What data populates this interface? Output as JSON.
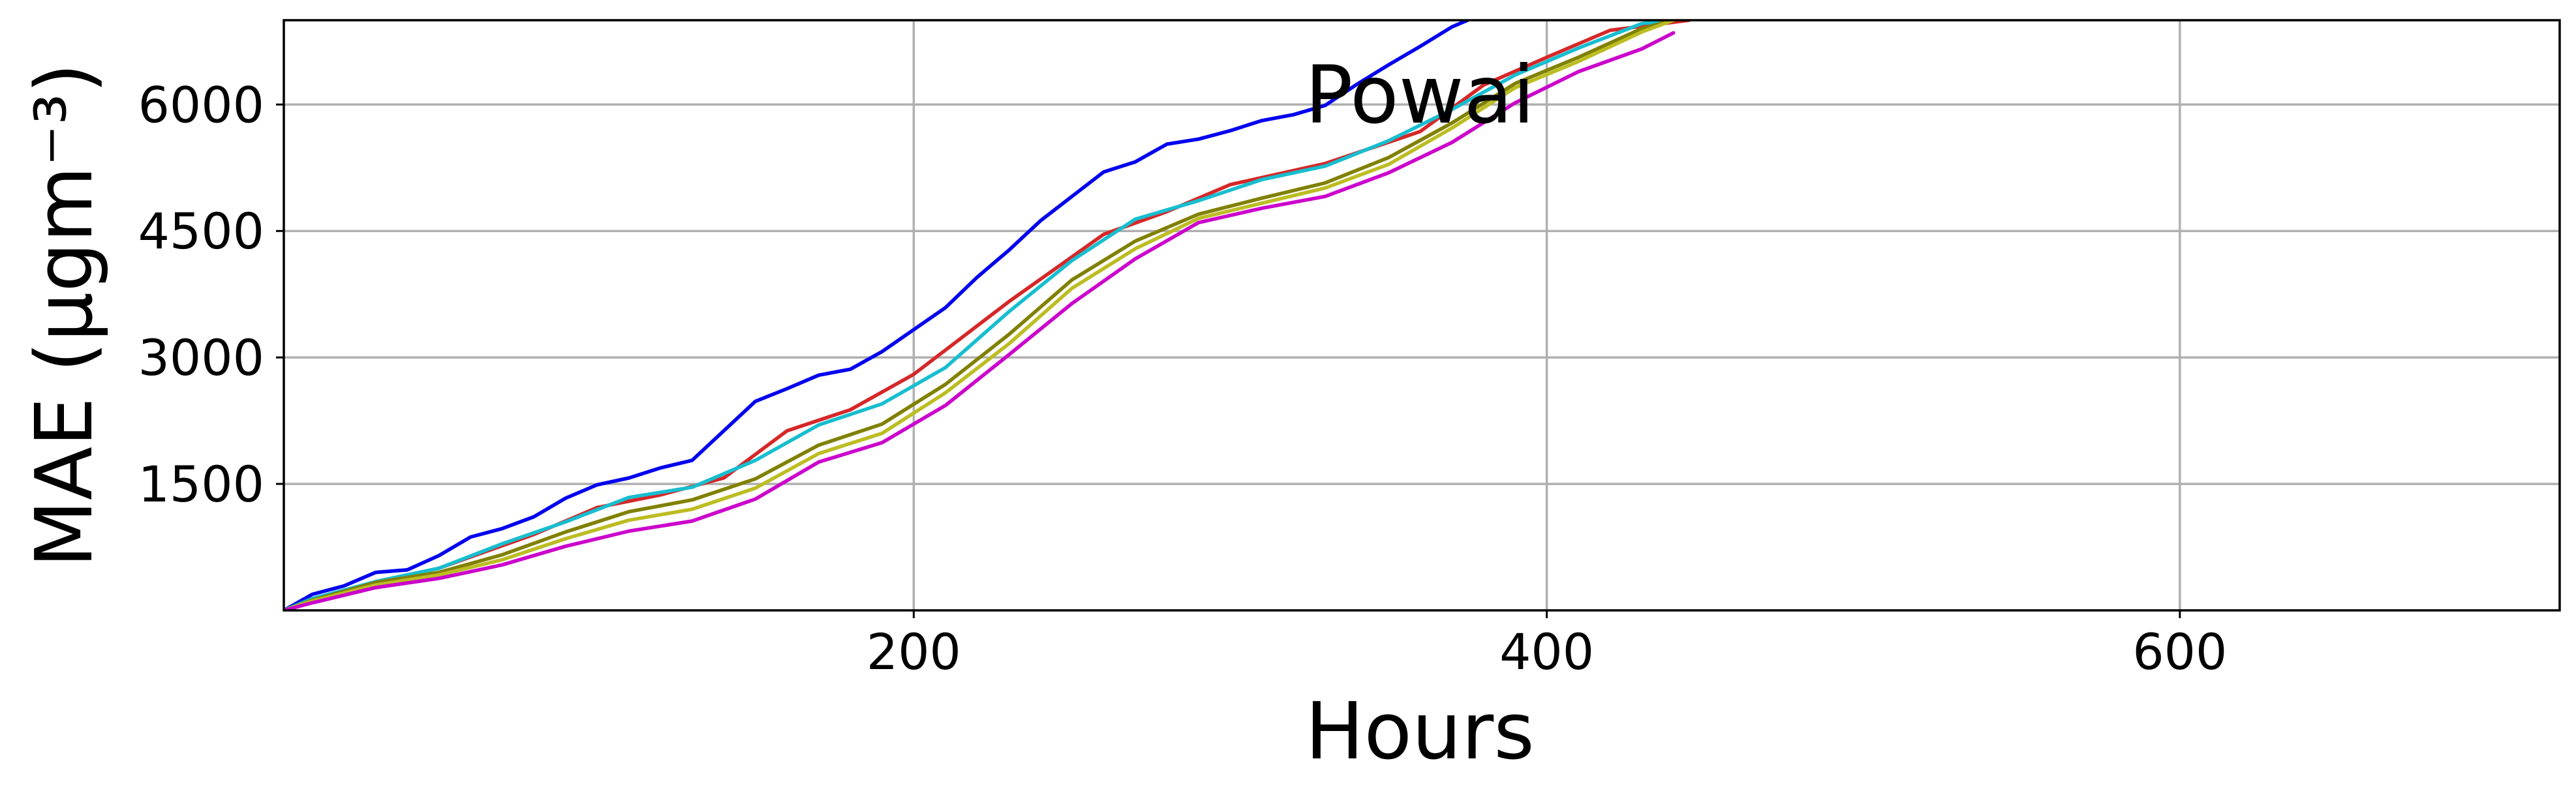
{
  "chart_data": {
    "type": "line",
    "title": "Powai",
    "xlabel": "Hours",
    "ylabel": "MAE (μgm⁻³)",
    "xlim": [
      1,
      720
    ],
    "ylim": [
      0,
      7000
    ],
    "xticks": [
      200,
      400,
      600
    ],
    "yticks": [
      1500,
      3000,
      4500,
      6000
    ],
    "xtick_labels": [
      "200",
      "400",
      "600"
    ],
    "ytick_labels": [
      "1500",
      "3000",
      "4500",
      "6000"
    ],
    "grid": true,
    "legend": "none",
    "series": [
      {
        "color": "#d62728",
        "x": [
          1,
          10,
          30,
          50,
          80,
          100,
          120,
          140,
          160,
          180,
          200,
          230,
          260,
          280,
          300,
          330,
          360,
          380,
          400,
          420,
          445
        ],
        "y": [
          0,
          130,
          340,
          500,
          900,
          1220,
          1370,
          1570,
          2130,
          2380,
          2800,
          3660,
          4460,
          4730,
          5050,
          5300,
          5680,
          6230,
          6560,
          6880,
          7000
        ]
      },
      {
        "color": "#0000ee",
        "x": [
          1,
          10,
          20,
          30,
          40,
          50,
          60,
          70,
          80,
          90,
          100,
          110,
          120,
          130,
          140,
          150,
          160,
          170,
          180,
          190,
          200,
          210,
          220,
          230,
          240,
          250,
          260,
          270,
          280,
          290,
          300,
          310,
          320,
          330,
          340,
          350,
          360,
          370,
          375
        ],
        "y": [
          0,
          190,
          290,
          450,
          480,
          650,
          870,
          970,
          1110,
          1330,
          1490,
          1570,
          1690,
          1780,
          2130,
          2480,
          2630,
          2790,
          2860,
          3070,
          3330,
          3590,
          3950,
          4270,
          4620,
          4910,
          5200,
          5320,
          5530,
          5590,
          5690,
          5810,
          5880,
          5990,
          6240,
          6470,
          6690,
          6920,
          7000
        ]
      },
      {
        "color": "#17becf",
        "x": [
          1,
          10,
          30,
          50,
          70,
          90,
          110,
          130,
          150,
          170,
          190,
          210,
          230,
          250,
          270,
          290,
          310,
          330,
          350,
          370,
          390,
          410,
          430,
          440
        ],
        "y": [
          0,
          140,
          340,
          500,
          790,
          1050,
          1340,
          1460,
          1780,
          2200,
          2450,
          2880,
          3540,
          4150,
          4640,
          4860,
          5110,
          5270,
          5570,
          5940,
          6350,
          6670,
          6960,
          7000
        ]
      },
      {
        "color": "#808000",
        "x": [
          1,
          10,
          30,
          50,
          70,
          90,
          110,
          130,
          150,
          170,
          190,
          210,
          230,
          250,
          270,
          290,
          310,
          330,
          350,
          370,
          390,
          410,
          430,
          440
        ],
        "y": [
          0,
          120,
          330,
          450,
          660,
          930,
          1170,
          1310,
          1560,
          1960,
          2210,
          2680,
          3270,
          3920,
          4380,
          4700,
          4890,
          5070,
          5370,
          5780,
          6250,
          6560,
          6900,
          7000
        ]
      },
      {
        "color": "#bcbd22",
        "x": [
          1,
          10,
          30,
          50,
          70,
          90,
          110,
          130,
          150,
          170,
          190,
          210,
          230,
          250,
          270,
          290,
          310,
          330,
          350,
          370,
          390,
          410,
          430,
          440
        ],
        "y": [
          0,
          110,
          300,
          420,
          600,
          850,
          1070,
          1200,
          1450,
          1860,
          2100,
          2580,
          3160,
          3820,
          4290,
          4650,
          4830,
          5010,
          5290,
          5720,
          6200,
          6510,
          6860,
          7000
        ]
      },
      {
        "color": "#cc00cc",
        "x": [
          1,
          10,
          30,
          50,
          70,
          90,
          110,
          130,
          150,
          170,
          190,
          210,
          230,
          250,
          270,
          290,
          310,
          330,
          350,
          370,
          390,
          410,
          430,
          440
        ],
        "y": [
          0,
          90,
          270,
          380,
          540,
          760,
          940,
          1060,
          1320,
          1760,
          1990,
          2430,
          3030,
          3640,
          4170,
          4600,
          4770,
          4910,
          5190,
          5550,
          6020,
          6390,
          6660,
          6850
        ]
      }
    ]
  }
}
